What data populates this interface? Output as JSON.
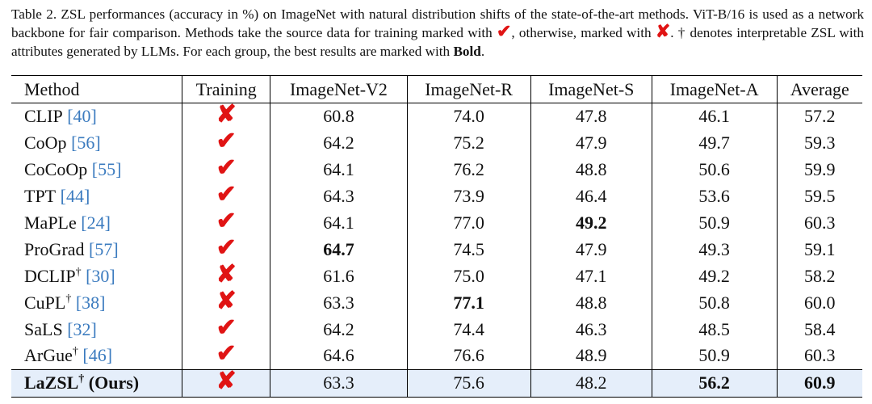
{
  "caption": {
    "part1": "Table 2. ZSL performances (accuracy in %) on ImageNet with natural distribution shifts of the state-of-the-art methods. ViT-B/16 is used as a network backbone for fair comparison. Methods take the source data for training marked with ",
    "check_symbol": "✔",
    "part2": ", otherwise, marked with ",
    "cross_symbol": "✘",
    "part3": ". † denotes interpretable ZSL with attributes generated by LLMs. For each group, the best results are marked with ",
    "bold_word": "Bold",
    "part4": "."
  },
  "table": {
    "headers": [
      "Method",
      "Training",
      "ImageNet-V2",
      "ImageNet-R",
      "ImageNet-S",
      "ImageNet-A",
      "Average"
    ],
    "rows": [
      {
        "name": "CLIP",
        "dagger": "",
        "ref": "[40]",
        "training": "✘",
        "v2": "60.8",
        "r": "74.0",
        "s": "47.8",
        "a": "46.1",
        "avg": "57.2"
      },
      {
        "name": "CoOp",
        "dagger": "",
        "ref": "[56]",
        "training": "✔",
        "v2": "64.2",
        "r": "75.2",
        "s": "47.9",
        "a": "49.7",
        "avg": "59.3"
      },
      {
        "name": "CoCoOp",
        "dagger": "",
        "ref": "[55]",
        "training": "✔",
        "v2": "64.1",
        "r": "76.2",
        "s": "48.8",
        "a": "50.6",
        "avg": "59.9"
      },
      {
        "name": "TPT",
        "dagger": "",
        "ref": "[44]",
        "training": "✔",
        "v2": "64.3",
        "r": "73.9",
        "s": "46.4",
        "a": "53.6",
        "avg": "59.5"
      },
      {
        "name": "MaPLe",
        "dagger": "",
        "ref": "[24]",
        "training": "✔",
        "v2": "64.1",
        "r": "77.0",
        "s": "49.2",
        "a": "50.9",
        "avg": "60.3"
      },
      {
        "name": "ProGrad",
        "dagger": "",
        "ref": "[57]",
        "training": "✔",
        "v2": "64.7",
        "r": "74.5",
        "s": "47.9",
        "a": "49.3",
        "avg": "59.1"
      },
      {
        "name": "DCLIP",
        "dagger": "†",
        "ref": "[30]",
        "training": "✘",
        "v2": "61.6",
        "r": "75.0",
        "s": "47.1",
        "a": "49.2",
        "avg": "58.2"
      },
      {
        "name": "CuPL",
        "dagger": "†",
        "ref": "[38]",
        "training": "✘",
        "v2": "63.3",
        "r": "77.1",
        "s": "48.8",
        "a": "50.8",
        "avg": "60.0"
      },
      {
        "name": "SaLS",
        "dagger": "",
        "ref": "[32]",
        "training": "✔",
        "v2": "64.2",
        "r": "74.4",
        "s": "46.3",
        "a": "48.5",
        "avg": "58.4"
      },
      {
        "name": "ArGue",
        "dagger": "†",
        "ref": "[46]",
        "training": "✔",
        "v2": "64.6",
        "r": "76.6",
        "s": "48.9",
        "a": "50.9",
        "avg": "60.3"
      }
    ],
    "last_row": {
      "name": "LaZSL",
      "dagger": "†",
      "suffix": "(Ours)",
      "training": "✘",
      "v2": "63.3",
      "r": "75.6",
      "s": "48.2",
      "a": "56.2",
      "avg": "60.9"
    }
  }
}
